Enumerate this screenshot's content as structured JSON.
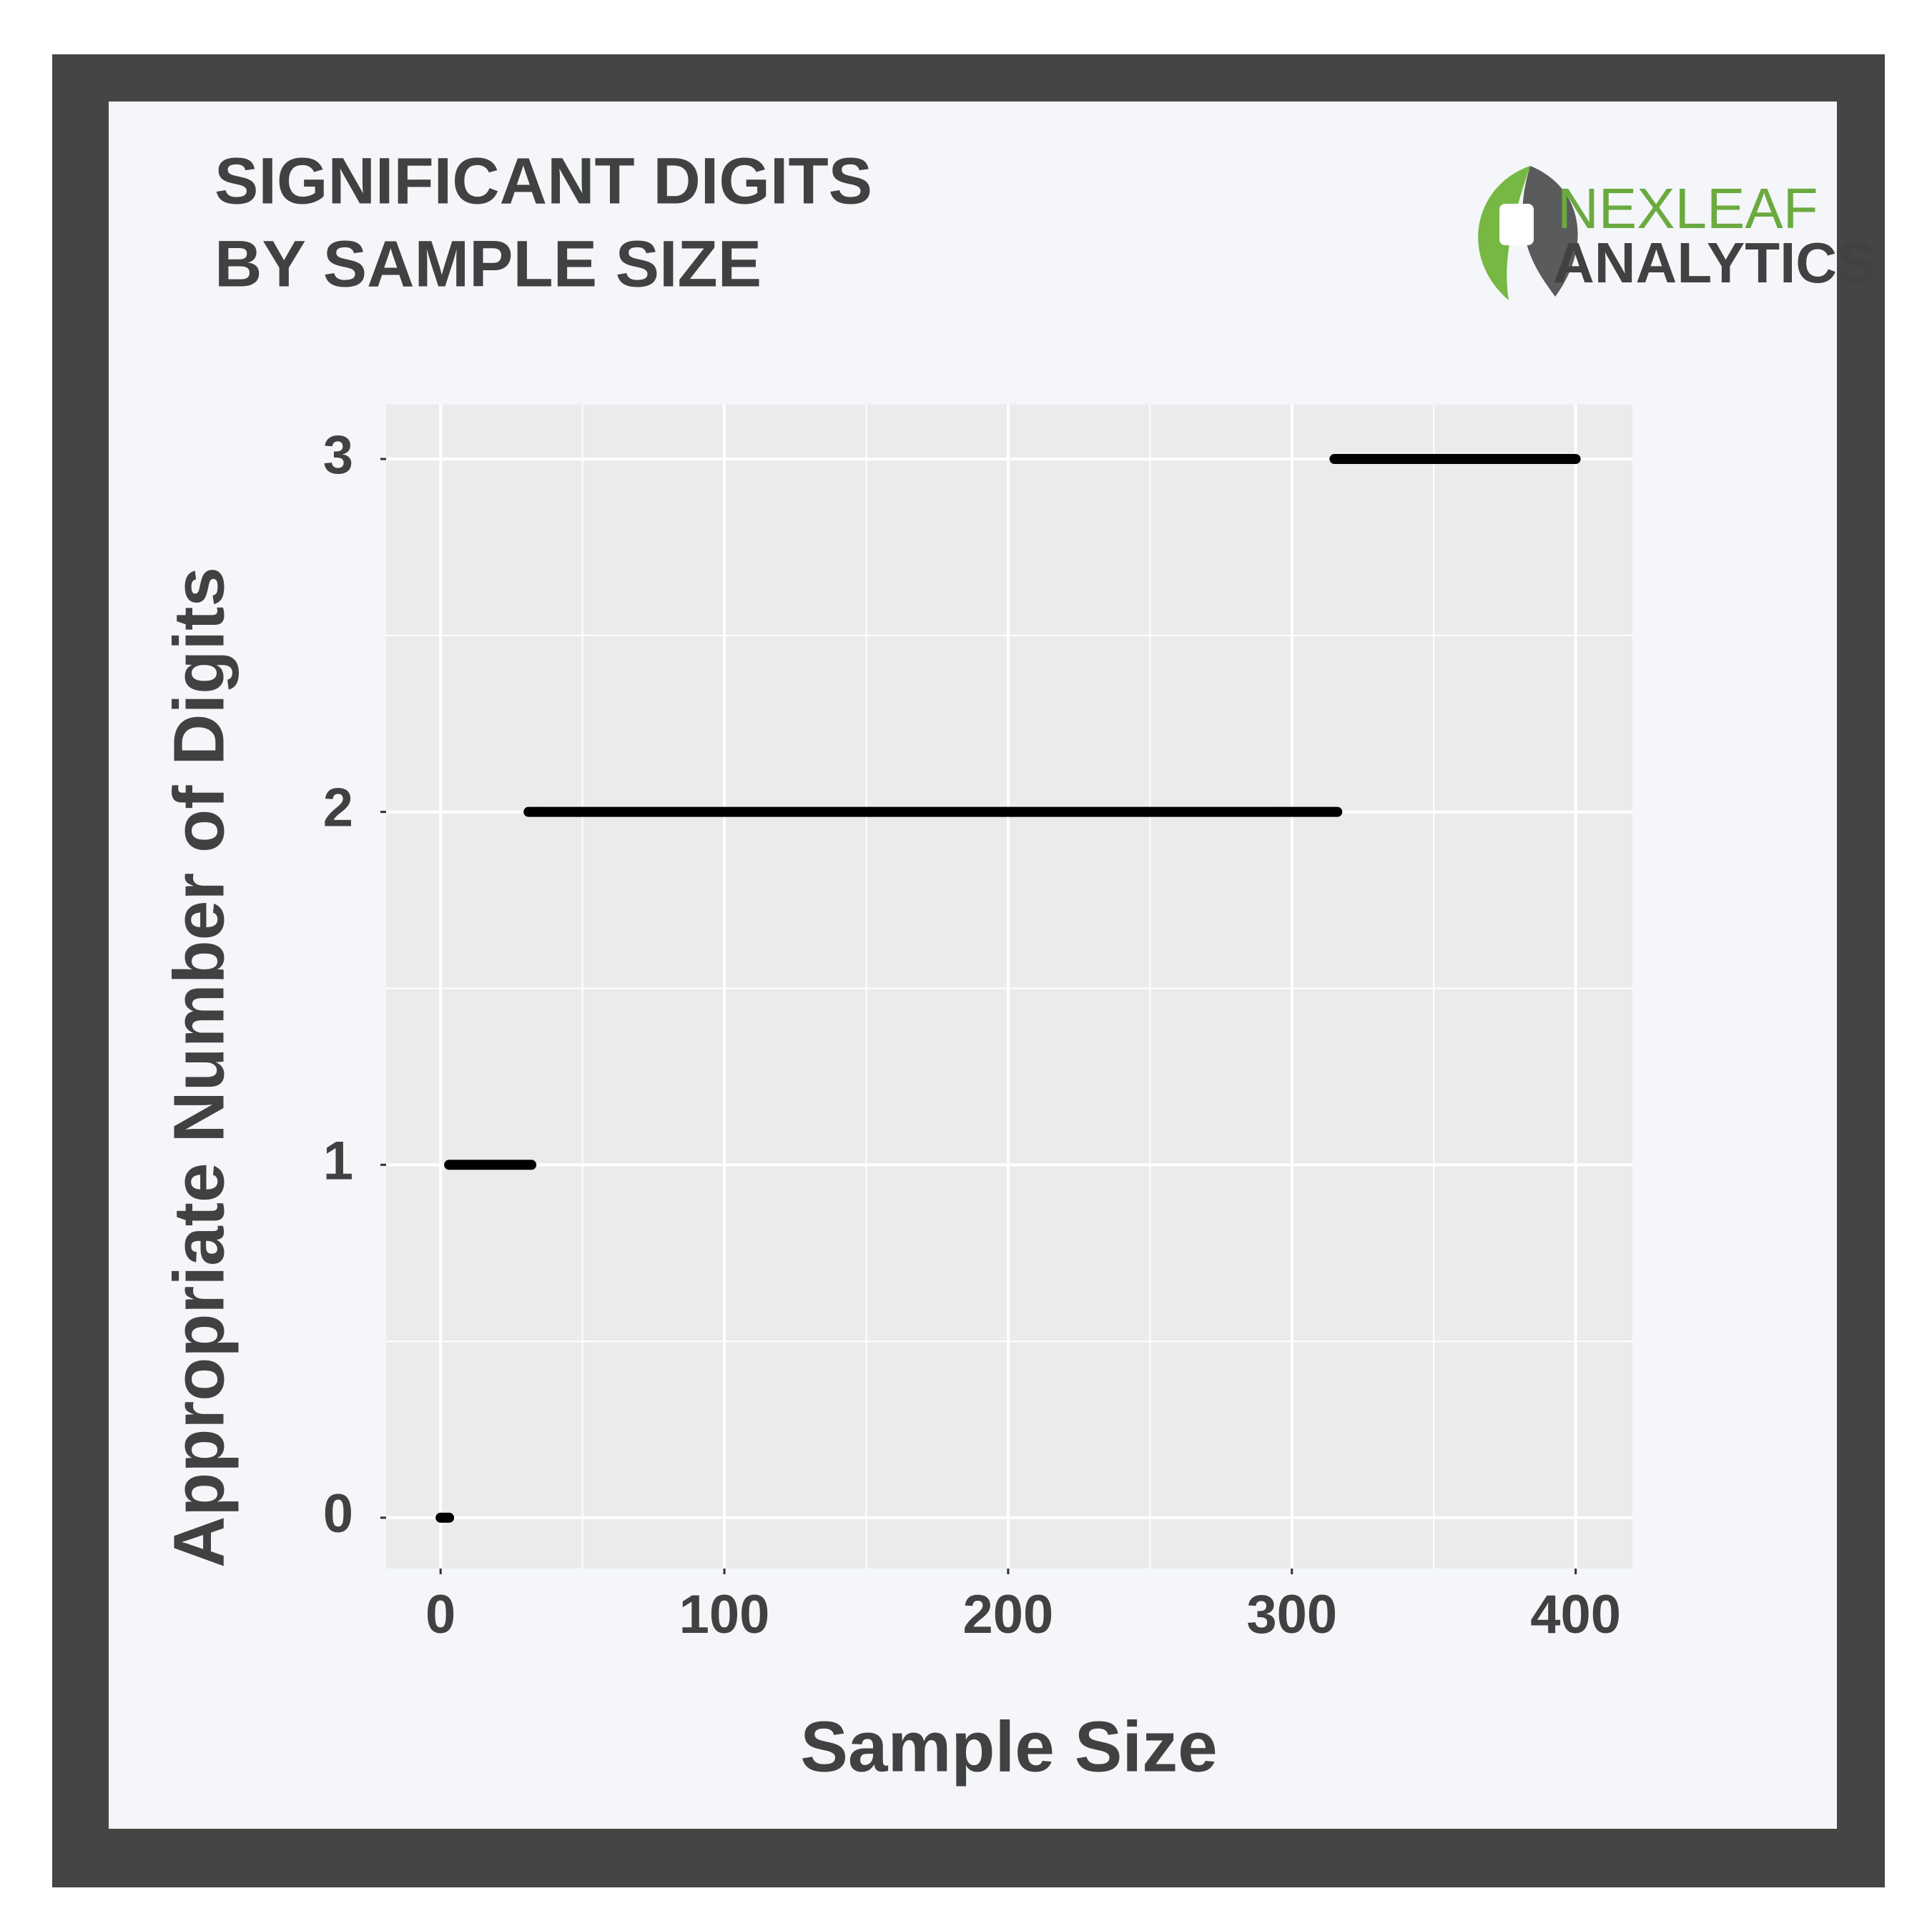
{
  "chart_data": {
    "type": "line",
    "title_lines": [
      "SIGNIFICANT DIGITS",
      "BY SAMPLE SIZE"
    ],
    "x_label": "Sample Size",
    "y_label": "Appropriate Number of Digits",
    "xlim": [
      -19.2,
      420
    ],
    "ylim": [
      -0.144,
      3.154
    ],
    "xticks": [
      0,
      100,
      200,
      300,
      400
    ],
    "yticks": [
      0,
      1,
      2,
      3
    ],
    "grid": true,
    "minor_grid": true,
    "series": [
      {
        "color": "#000000",
        "x": [
          0,
          3
        ],
        "values": [
          0,
          0
        ]
      },
      {
        "color": "#000000",
        "x": [
          3,
          32
        ],
        "values": [
          1,
          1
        ]
      },
      {
        "color": "#000000",
        "x": [
          31,
          316
        ],
        "values": [
          2,
          2
        ]
      },
      {
        "color": "#000000",
        "x": [
          315,
          400
        ],
        "values": [
          3,
          3
        ]
      }
    ]
  },
  "logo": {
    "line1": "NEXLEAF",
    "line2": "ANALYTICS"
  }
}
